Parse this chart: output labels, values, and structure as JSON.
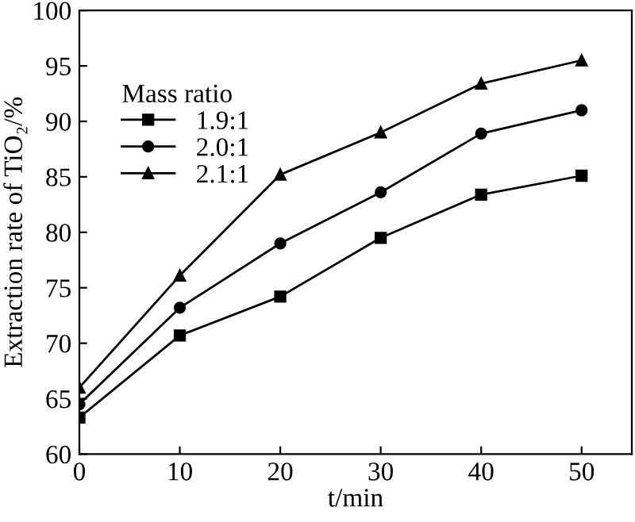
{
  "chart_data": {
    "type": "line",
    "xlabel": "t/min",
    "ylabel": "Extraction rate of TiO₂/%",
    "legend_title": "Mass ratio",
    "legend": "top left",
    "line_style": "solid",
    "grid": false,
    "x": [
      0,
      10,
      20,
      30,
      40,
      50
    ],
    "xlim": [
      0,
      55
    ],
    "xticks": [
      0,
      10,
      20,
      30,
      40,
      50
    ],
    "ylim": [
      60,
      100
    ],
    "yticks": [
      60,
      65,
      70,
      75,
      80,
      85,
      90,
      95,
      100
    ],
    "series": [
      {
        "name": "1.9:1",
        "color": "#000000",
        "marker": "square",
        "values": [
          63.3,
          70.7,
          74.2,
          79.5,
          83.4,
          85.1
        ]
      },
      {
        "name": "2.0:1",
        "color": "#000000",
        "marker": "circle",
        "values": [
          64.5,
          73.2,
          79.0,
          83.6,
          88.9,
          91.0
        ]
      },
      {
        "name": "2.1:1",
        "color": "#000000",
        "marker": "triangle",
        "values": [
          66.0,
          76.1,
          85.2,
          89.0,
          93.4,
          95.5
        ]
      }
    ]
  }
}
